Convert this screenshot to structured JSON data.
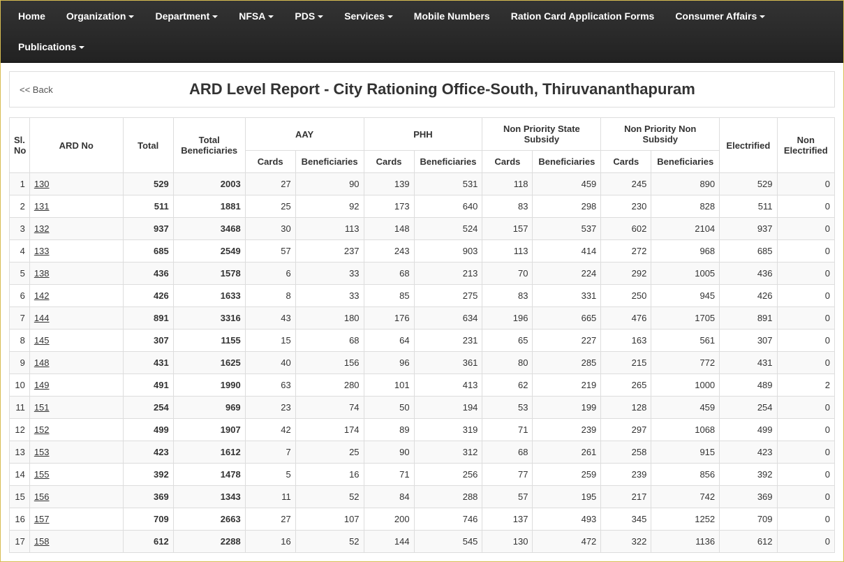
{
  "nav": {
    "items": [
      {
        "label": "Home",
        "dropdown": false
      },
      {
        "label": "Organization",
        "dropdown": true
      },
      {
        "label": "Department",
        "dropdown": true
      },
      {
        "label": "NFSA",
        "dropdown": true
      },
      {
        "label": "PDS",
        "dropdown": true
      },
      {
        "label": "Services",
        "dropdown": true
      },
      {
        "label": "Mobile Numbers",
        "dropdown": false
      },
      {
        "label": "Ration Card Application Forms",
        "dropdown": false
      },
      {
        "label": "Consumer Affairs",
        "dropdown": true
      },
      {
        "label": "Publications",
        "dropdown": true
      }
    ]
  },
  "header": {
    "back_label": "<< Back",
    "title": "ARD Level Report - City Rationing Office-South, Thiruvananthapuram"
  },
  "table": {
    "columns_top": {
      "slno": "Sl. No",
      "ard": "ARD No",
      "total": "Total",
      "total_benef": "Total Beneficiaries",
      "aay": "AAY",
      "phh": "PHH",
      "npss": "Non Priority State Subsidy",
      "npns": "Non Priority Non Subsidy",
      "electrified": "Electrified",
      "non_electrified": "Non Electrified"
    },
    "columns_sub": {
      "cards": "Cards",
      "benef": "Beneficiaries"
    },
    "rows": [
      {
        "sl": 1,
        "ard": "130",
        "total": 529,
        "tb": 2003,
        "aay_c": 27,
        "aay_b": 90,
        "phh_c": 139,
        "phh_b": 531,
        "npss_c": 118,
        "npss_b": 459,
        "npns_c": 245,
        "npns_b": 890,
        "el": 529,
        "nel": 0
      },
      {
        "sl": 2,
        "ard": "131",
        "total": 511,
        "tb": 1881,
        "aay_c": 25,
        "aay_b": 92,
        "phh_c": 173,
        "phh_b": 640,
        "npss_c": 83,
        "npss_b": 298,
        "npns_c": 230,
        "npns_b": 828,
        "el": 511,
        "nel": 0
      },
      {
        "sl": 3,
        "ard": "132",
        "total": 937,
        "tb": 3468,
        "aay_c": 30,
        "aay_b": 113,
        "phh_c": 148,
        "phh_b": 524,
        "npss_c": 157,
        "npss_b": 537,
        "npns_c": 602,
        "npns_b": 2104,
        "el": 937,
        "nel": 0
      },
      {
        "sl": 4,
        "ard": "133",
        "total": 685,
        "tb": 2549,
        "aay_c": 57,
        "aay_b": 237,
        "phh_c": 243,
        "phh_b": 903,
        "npss_c": 113,
        "npss_b": 414,
        "npns_c": 272,
        "npns_b": 968,
        "el": 685,
        "nel": 0
      },
      {
        "sl": 5,
        "ard": "138",
        "total": 436,
        "tb": 1578,
        "aay_c": 6,
        "aay_b": 33,
        "phh_c": 68,
        "phh_b": 213,
        "npss_c": 70,
        "npss_b": 224,
        "npns_c": 292,
        "npns_b": 1005,
        "el": 436,
        "nel": 0
      },
      {
        "sl": 6,
        "ard": "142",
        "total": 426,
        "tb": 1633,
        "aay_c": 8,
        "aay_b": 33,
        "phh_c": 85,
        "phh_b": 275,
        "npss_c": 83,
        "npss_b": 331,
        "npns_c": 250,
        "npns_b": 945,
        "el": 426,
        "nel": 0
      },
      {
        "sl": 7,
        "ard": "144",
        "total": 891,
        "tb": 3316,
        "aay_c": 43,
        "aay_b": 180,
        "phh_c": 176,
        "phh_b": 634,
        "npss_c": 196,
        "npss_b": 665,
        "npns_c": 476,
        "npns_b": 1705,
        "el": 891,
        "nel": 0
      },
      {
        "sl": 8,
        "ard": "145",
        "total": 307,
        "tb": 1155,
        "aay_c": 15,
        "aay_b": 68,
        "phh_c": 64,
        "phh_b": 231,
        "npss_c": 65,
        "npss_b": 227,
        "npns_c": 163,
        "npns_b": 561,
        "el": 307,
        "nel": 0
      },
      {
        "sl": 9,
        "ard": "148",
        "total": 431,
        "tb": 1625,
        "aay_c": 40,
        "aay_b": 156,
        "phh_c": 96,
        "phh_b": 361,
        "npss_c": 80,
        "npss_b": 285,
        "npns_c": 215,
        "npns_b": 772,
        "el": 431,
        "nel": 0
      },
      {
        "sl": 10,
        "ard": "149",
        "total": 491,
        "tb": 1990,
        "aay_c": 63,
        "aay_b": 280,
        "phh_c": 101,
        "phh_b": 413,
        "npss_c": 62,
        "npss_b": 219,
        "npns_c": 265,
        "npns_b": 1000,
        "el": 489,
        "nel": 2
      },
      {
        "sl": 11,
        "ard": "151",
        "total": 254,
        "tb": 969,
        "aay_c": 23,
        "aay_b": 74,
        "phh_c": 50,
        "phh_b": 194,
        "npss_c": 53,
        "npss_b": 199,
        "npns_c": 128,
        "npns_b": 459,
        "el": 254,
        "nel": 0
      },
      {
        "sl": 12,
        "ard": "152",
        "total": 499,
        "tb": 1907,
        "aay_c": 42,
        "aay_b": 174,
        "phh_c": 89,
        "phh_b": 319,
        "npss_c": 71,
        "npss_b": 239,
        "npns_c": 297,
        "npns_b": 1068,
        "el": 499,
        "nel": 0
      },
      {
        "sl": 13,
        "ard": "153",
        "total": 423,
        "tb": 1612,
        "aay_c": 7,
        "aay_b": 25,
        "phh_c": 90,
        "phh_b": 312,
        "npss_c": 68,
        "npss_b": 261,
        "npns_c": 258,
        "npns_b": 915,
        "el": 423,
        "nel": 0
      },
      {
        "sl": 14,
        "ard": "155",
        "total": 392,
        "tb": 1478,
        "aay_c": 5,
        "aay_b": 16,
        "phh_c": 71,
        "phh_b": 256,
        "npss_c": 77,
        "npss_b": 259,
        "npns_c": 239,
        "npns_b": 856,
        "el": 392,
        "nel": 0
      },
      {
        "sl": 15,
        "ard": "156",
        "total": 369,
        "tb": 1343,
        "aay_c": 11,
        "aay_b": 52,
        "phh_c": 84,
        "phh_b": 288,
        "npss_c": 57,
        "npss_b": 195,
        "npns_c": 217,
        "npns_b": 742,
        "el": 369,
        "nel": 0
      },
      {
        "sl": 16,
        "ard": "157",
        "total": 709,
        "tb": 2663,
        "aay_c": 27,
        "aay_b": 107,
        "phh_c": 200,
        "phh_b": 746,
        "npss_c": 137,
        "npss_b": 493,
        "npns_c": 345,
        "npns_b": 1252,
        "el": 709,
        "nel": 0
      },
      {
        "sl": 17,
        "ard": "158",
        "total": 612,
        "tb": 2288,
        "aay_c": 16,
        "aay_b": 52,
        "phh_c": 144,
        "phh_b": 545,
        "npss_c": 130,
        "npss_b": 472,
        "npns_c": 322,
        "npns_b": 1136,
        "el": 612,
        "nel": 0
      }
    ]
  },
  "style": {
    "page_bg": "#a4c4cd",
    "body_border": "#d8bd52",
    "nav_bg": "#2b2b2b",
    "nav_text": "#ffffff",
    "cell_border": "#dddddd",
    "row_odd_bg": "#f9f9f9",
    "row_even_bg": "#ffffff",
    "link_color": "#333333",
    "title_fontsize": 22
  }
}
